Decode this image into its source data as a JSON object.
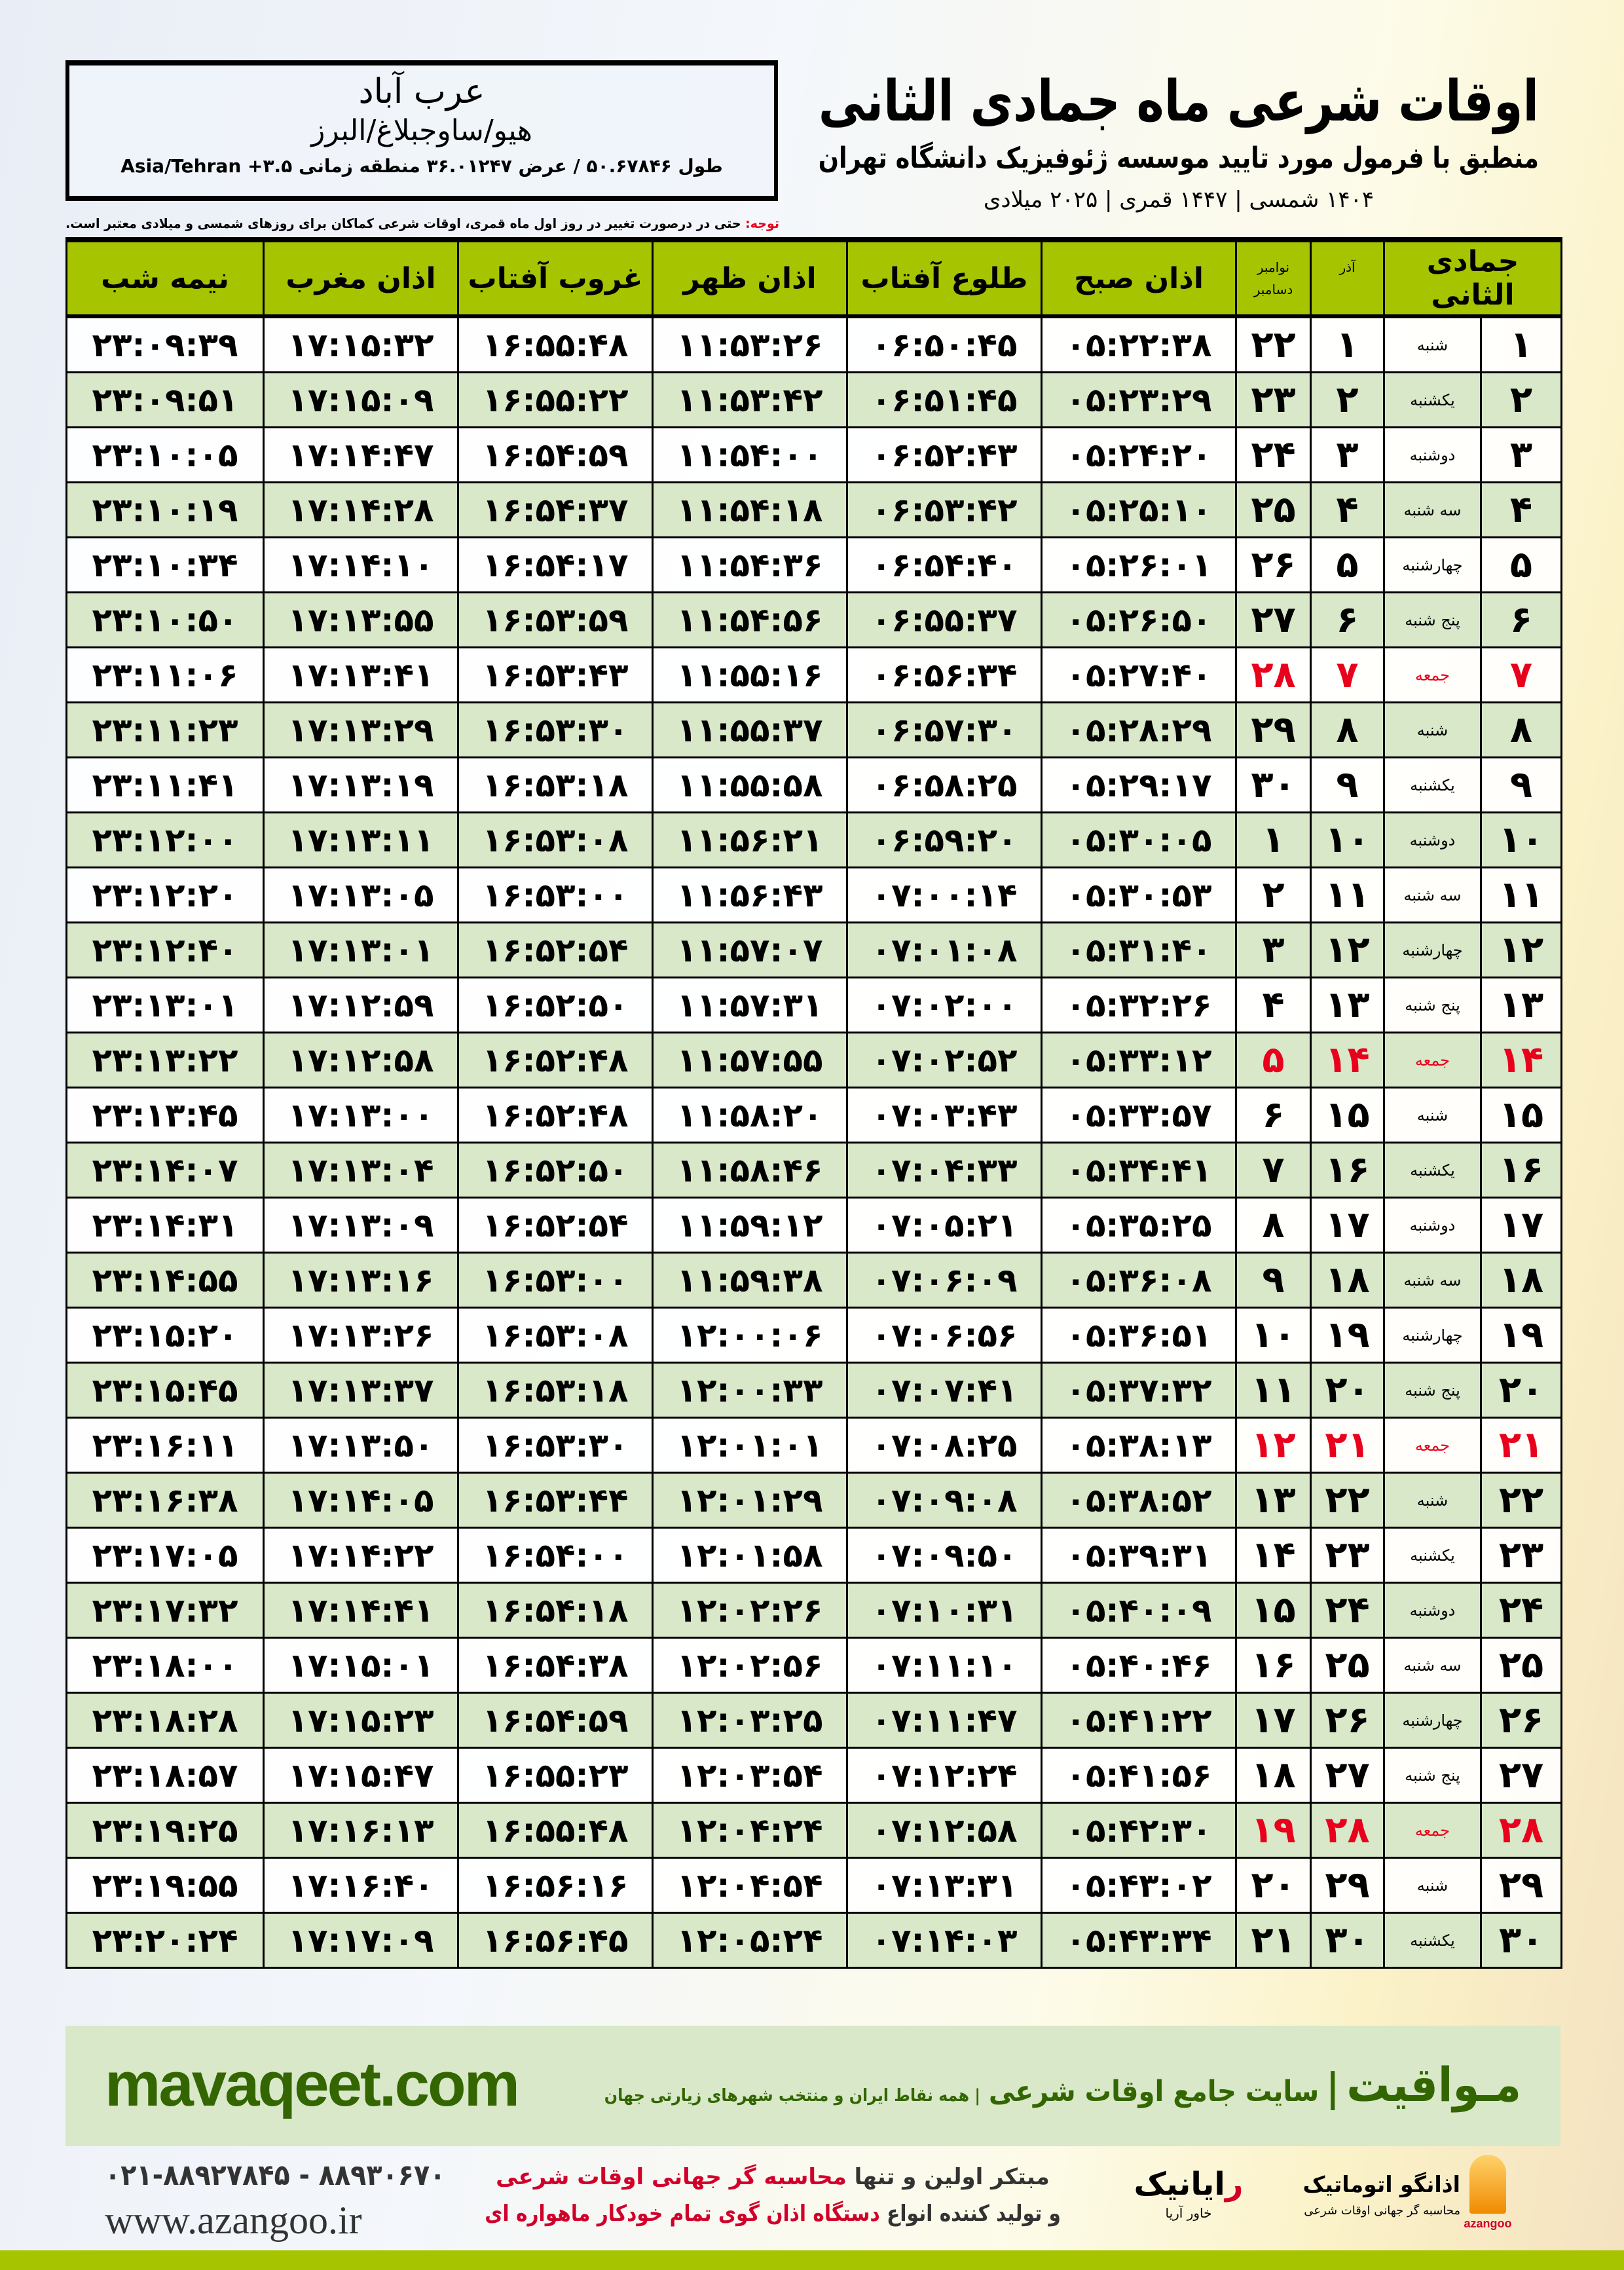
{
  "location": {
    "city": "عرب آباد",
    "region": "هیو/ساوجبلاغ/البرز",
    "coords": "طول ۵۰.۶۷۸۴۶ / عرض ۳۶.۰۱۲۴۷ منطقه زمانی ۳.۵+ Asia/Tehran"
  },
  "header": {
    "title": "اوقات شرعی ماه جمادی الثانی",
    "subtitle": "منطبق با فرمول مورد تایید موسسه ژئوفیزیک دانشگاه تهران",
    "years": "۱۴۰۴ شمسی | ۱۴۴۷ قمری | ۲۰۲۵ میلادی",
    "note_label": "توجه:",
    "note_text": " حتی در درصورت تغییر در روز اول ماه قمری، اوقات شرعی کماکان برای روزهای شمسی و میلادی معتبر است."
  },
  "colors": {
    "header_green": "#a6c400",
    "row_green": "#d8e8c8",
    "holiday_red": "#e8001c",
    "brand_green": "#336600"
  },
  "table": {
    "headers": {
      "hijri": "جمادی الثانی",
      "azar": "آذر",
      "gregorian_top": "نوامبر",
      "gregorian_bottom": "دسامبر",
      "fajr": "اذان صبح",
      "sunrise": "طلوع آفتاب",
      "dhuhr": "اذان ظهر",
      "sunset": "غروب آفتاب",
      "maghrib": "اذان مغرب",
      "midnight": "نیمه شب"
    },
    "rows": [
      {
        "hijri": "۱",
        "weekday": "شنبه",
        "azar": "۱",
        "gregorian": "۲۲",
        "holiday": false,
        "fajr": "۰۵:۲۲:۳۸",
        "sunrise": "۰۶:۵۰:۴۵",
        "dhuhr": "۱۱:۵۳:۲۶",
        "sunset": "۱۶:۵۵:۴۸",
        "maghrib": "۱۷:۱۵:۳۲",
        "midnight": "۲۳:۰۹:۳۹"
      },
      {
        "hijri": "۲",
        "weekday": "یکشنبه",
        "azar": "۲",
        "gregorian": "۲۳",
        "holiday": false,
        "fajr": "۰۵:۲۳:۲۹",
        "sunrise": "۰۶:۵۱:۴۵",
        "dhuhr": "۱۱:۵۳:۴۲",
        "sunset": "۱۶:۵۵:۲۲",
        "maghrib": "۱۷:۱۵:۰۹",
        "midnight": "۲۳:۰۹:۵۱"
      },
      {
        "hijri": "۳",
        "weekday": "دوشنبه",
        "azar": "۳",
        "gregorian": "۲۴",
        "holiday": false,
        "fajr": "۰۵:۲۴:۲۰",
        "sunrise": "۰۶:۵۲:۴۳",
        "dhuhr": "۱۱:۵۴:۰۰",
        "sunset": "۱۶:۵۴:۵۹",
        "maghrib": "۱۷:۱۴:۴۷",
        "midnight": "۲۳:۱۰:۰۵"
      },
      {
        "hijri": "۴",
        "weekday": "سه شنبه",
        "azar": "۴",
        "gregorian": "۲۵",
        "holiday": false,
        "fajr": "۰۵:۲۵:۱۰",
        "sunrise": "۰۶:۵۳:۴۲",
        "dhuhr": "۱۱:۵۴:۱۸",
        "sunset": "۱۶:۵۴:۳۷",
        "maghrib": "۱۷:۱۴:۲۸",
        "midnight": "۲۳:۱۰:۱۹"
      },
      {
        "hijri": "۵",
        "weekday": "چهارشنبه",
        "azar": "۵",
        "gregorian": "۲۶",
        "holiday": false,
        "fajr": "۰۵:۲۶:۰۱",
        "sunrise": "۰۶:۵۴:۴۰",
        "dhuhr": "۱۱:۵۴:۳۶",
        "sunset": "۱۶:۵۴:۱۷",
        "maghrib": "۱۷:۱۴:۱۰",
        "midnight": "۲۳:۱۰:۳۴"
      },
      {
        "hijri": "۶",
        "weekday": "پنج شنبه",
        "azar": "۶",
        "gregorian": "۲۷",
        "holiday": false,
        "fajr": "۰۵:۲۶:۵۰",
        "sunrise": "۰۶:۵۵:۳۷",
        "dhuhr": "۱۱:۵۴:۵۶",
        "sunset": "۱۶:۵۳:۵۹",
        "maghrib": "۱۷:۱۳:۵۵",
        "midnight": "۲۳:۱۰:۵۰"
      },
      {
        "hijri": "۷",
        "weekday": "جمعه",
        "azar": "۷",
        "gregorian": "۲۸",
        "holiday": true,
        "fajr": "۰۵:۲۷:۴۰",
        "sunrise": "۰۶:۵۶:۳۴",
        "dhuhr": "۱۱:۵۵:۱۶",
        "sunset": "۱۶:۵۳:۴۳",
        "maghrib": "۱۷:۱۳:۴۱",
        "midnight": "۲۳:۱۱:۰۶"
      },
      {
        "hijri": "۸",
        "weekday": "شنبه",
        "azar": "۸",
        "gregorian": "۲۹",
        "holiday": false,
        "fajr": "۰۵:۲۸:۲۹",
        "sunrise": "۰۶:۵۷:۳۰",
        "dhuhr": "۱۱:۵۵:۳۷",
        "sunset": "۱۶:۵۳:۳۰",
        "maghrib": "۱۷:۱۳:۲۹",
        "midnight": "۲۳:۱۱:۲۳"
      },
      {
        "hijri": "۹",
        "weekday": "یکشنبه",
        "azar": "۹",
        "gregorian": "۳۰",
        "holiday": false,
        "fajr": "۰۵:۲۹:۱۷",
        "sunrise": "۰۶:۵۸:۲۵",
        "dhuhr": "۱۱:۵۵:۵۸",
        "sunset": "۱۶:۵۳:۱۸",
        "maghrib": "۱۷:۱۳:۱۹",
        "midnight": "۲۳:۱۱:۴۱"
      },
      {
        "hijri": "۱۰",
        "weekday": "دوشنبه",
        "azar": "۱۰",
        "gregorian": "۱",
        "holiday": false,
        "fajr": "۰۵:۳۰:۰۵",
        "sunrise": "۰۶:۵۹:۲۰",
        "dhuhr": "۱۱:۵۶:۲۱",
        "sunset": "۱۶:۵۳:۰۸",
        "maghrib": "۱۷:۱۳:۱۱",
        "midnight": "۲۳:۱۲:۰۰"
      },
      {
        "hijri": "۱۱",
        "weekday": "سه شنبه",
        "azar": "۱۱",
        "gregorian": "۲",
        "holiday": false,
        "fajr": "۰۵:۳۰:۵۳",
        "sunrise": "۰۷:۰۰:۱۴",
        "dhuhr": "۱۱:۵۶:۴۳",
        "sunset": "۱۶:۵۳:۰۰",
        "maghrib": "۱۷:۱۳:۰۵",
        "midnight": "۲۳:۱۲:۲۰"
      },
      {
        "hijri": "۱۲",
        "weekday": "چهارشنبه",
        "azar": "۱۲",
        "gregorian": "۳",
        "holiday": false,
        "fajr": "۰۵:۳۱:۴۰",
        "sunrise": "۰۷:۰۱:۰۸",
        "dhuhr": "۱۱:۵۷:۰۷",
        "sunset": "۱۶:۵۲:۵۴",
        "maghrib": "۱۷:۱۳:۰۱",
        "midnight": "۲۳:۱۲:۴۰"
      },
      {
        "hijri": "۱۳",
        "weekday": "پنج شنبه",
        "azar": "۱۳",
        "gregorian": "۴",
        "holiday": false,
        "fajr": "۰۵:۳۲:۲۶",
        "sunrise": "۰۷:۰۲:۰۰",
        "dhuhr": "۱۱:۵۷:۳۱",
        "sunset": "۱۶:۵۲:۵۰",
        "maghrib": "۱۷:۱۲:۵۹",
        "midnight": "۲۳:۱۳:۰۱"
      },
      {
        "hijri": "۱۴",
        "weekday": "جمعه",
        "azar": "۱۴",
        "gregorian": "۵",
        "holiday": true,
        "fajr": "۰۵:۳۳:۱۲",
        "sunrise": "۰۷:۰۲:۵۲",
        "dhuhr": "۱۱:۵۷:۵۵",
        "sunset": "۱۶:۵۲:۴۸",
        "maghrib": "۱۷:۱۲:۵۸",
        "midnight": "۲۳:۱۳:۲۲"
      },
      {
        "hijri": "۱۵",
        "weekday": "شنبه",
        "azar": "۱۵",
        "gregorian": "۶",
        "holiday": false,
        "fajr": "۰۵:۳۳:۵۷",
        "sunrise": "۰۷:۰۳:۴۳",
        "dhuhr": "۱۱:۵۸:۲۰",
        "sunset": "۱۶:۵۲:۴۸",
        "maghrib": "۱۷:۱۳:۰۰",
        "midnight": "۲۳:۱۳:۴۵"
      },
      {
        "hijri": "۱۶",
        "weekday": "یکشنبه",
        "azar": "۱۶",
        "gregorian": "۷",
        "holiday": false,
        "fajr": "۰۵:۳۴:۴۱",
        "sunrise": "۰۷:۰۴:۳۳",
        "dhuhr": "۱۱:۵۸:۴۶",
        "sunset": "۱۶:۵۲:۵۰",
        "maghrib": "۱۷:۱۳:۰۴",
        "midnight": "۲۳:۱۴:۰۷"
      },
      {
        "hijri": "۱۷",
        "weekday": "دوشنبه",
        "azar": "۱۷",
        "gregorian": "۸",
        "holiday": false,
        "fajr": "۰۵:۳۵:۲۵",
        "sunrise": "۰۷:۰۵:۲۱",
        "dhuhr": "۱۱:۵۹:۱۲",
        "sunset": "۱۶:۵۲:۵۴",
        "maghrib": "۱۷:۱۳:۰۹",
        "midnight": "۲۳:۱۴:۳۱"
      },
      {
        "hijri": "۱۸",
        "weekday": "سه شنبه",
        "azar": "۱۸",
        "gregorian": "۹",
        "holiday": false,
        "fajr": "۰۵:۳۶:۰۸",
        "sunrise": "۰۷:۰۶:۰۹",
        "dhuhr": "۱۱:۵۹:۳۸",
        "sunset": "۱۶:۵۳:۰۰",
        "maghrib": "۱۷:۱۳:۱۶",
        "midnight": "۲۳:۱۴:۵۵"
      },
      {
        "hijri": "۱۹",
        "weekday": "چهارشنبه",
        "azar": "۱۹",
        "gregorian": "۱۰",
        "holiday": false,
        "fajr": "۰۵:۳۶:۵۱",
        "sunrise": "۰۷:۰۶:۵۶",
        "dhuhr": "۱۲:۰۰:۰۶",
        "sunset": "۱۶:۵۳:۰۸",
        "maghrib": "۱۷:۱۳:۲۶",
        "midnight": "۲۳:۱۵:۲۰"
      },
      {
        "hijri": "۲۰",
        "weekday": "پنج شنبه",
        "azar": "۲۰",
        "gregorian": "۱۱",
        "holiday": false,
        "fajr": "۰۵:۳۷:۳۲",
        "sunrise": "۰۷:۰۷:۴۱",
        "dhuhr": "۱۲:۰۰:۳۳",
        "sunset": "۱۶:۵۳:۱۸",
        "maghrib": "۱۷:۱۳:۳۷",
        "midnight": "۲۳:۱۵:۴۵"
      },
      {
        "hijri": "۲۱",
        "weekday": "جمعه",
        "azar": "۲۱",
        "gregorian": "۱۲",
        "holiday": true,
        "fajr": "۰۵:۳۸:۱۳",
        "sunrise": "۰۷:۰۸:۲۵",
        "dhuhr": "۱۲:۰۱:۰۱",
        "sunset": "۱۶:۵۳:۳۰",
        "maghrib": "۱۷:۱۳:۵۰",
        "midnight": "۲۳:۱۶:۱۱"
      },
      {
        "hijri": "۲۲",
        "weekday": "شنبه",
        "azar": "۲۲",
        "gregorian": "۱۳",
        "holiday": false,
        "fajr": "۰۵:۳۸:۵۲",
        "sunrise": "۰۷:۰۹:۰۸",
        "dhuhr": "۱۲:۰۱:۲۹",
        "sunset": "۱۶:۵۳:۴۴",
        "maghrib": "۱۷:۱۴:۰۵",
        "midnight": "۲۳:۱۶:۳۸"
      },
      {
        "hijri": "۲۳",
        "weekday": "یکشنبه",
        "azar": "۲۳",
        "gregorian": "۱۴",
        "holiday": false,
        "fajr": "۰۵:۳۹:۳۱",
        "sunrise": "۰۷:۰۹:۵۰",
        "dhuhr": "۱۲:۰۱:۵۸",
        "sunset": "۱۶:۵۴:۰۰",
        "maghrib": "۱۷:۱۴:۲۲",
        "midnight": "۲۳:۱۷:۰۵"
      },
      {
        "hijri": "۲۴",
        "weekday": "دوشنبه",
        "azar": "۲۴",
        "gregorian": "۱۵",
        "holiday": false,
        "fajr": "۰۵:۴۰:۰۹",
        "sunrise": "۰۷:۱۰:۳۱",
        "dhuhr": "۱۲:۰۲:۲۶",
        "sunset": "۱۶:۵۴:۱۸",
        "maghrib": "۱۷:۱۴:۴۱",
        "midnight": "۲۳:۱۷:۳۲"
      },
      {
        "hijri": "۲۵",
        "weekday": "سه شنبه",
        "azar": "۲۵",
        "gregorian": "۱۶",
        "holiday": false,
        "fajr": "۰۵:۴۰:۴۶",
        "sunrise": "۰۷:۱۱:۱۰",
        "dhuhr": "۱۲:۰۲:۵۶",
        "sunset": "۱۶:۵۴:۳۸",
        "maghrib": "۱۷:۱۵:۰۱",
        "midnight": "۲۳:۱۸:۰۰"
      },
      {
        "hijri": "۲۶",
        "weekday": "چهارشنبه",
        "azar": "۲۶",
        "gregorian": "۱۷",
        "holiday": false,
        "fajr": "۰۵:۴۱:۲۲",
        "sunrise": "۰۷:۱۱:۴۷",
        "dhuhr": "۱۲:۰۳:۲۵",
        "sunset": "۱۶:۵۴:۵۹",
        "maghrib": "۱۷:۱۵:۲۳",
        "midnight": "۲۳:۱۸:۲۸"
      },
      {
        "hijri": "۲۷",
        "weekday": "پنج شنبه",
        "azar": "۲۷",
        "gregorian": "۱۸",
        "holiday": false,
        "fajr": "۰۵:۴۱:۵۶",
        "sunrise": "۰۷:۱۲:۲۴",
        "dhuhr": "۱۲:۰۳:۵۴",
        "sunset": "۱۶:۵۵:۲۳",
        "maghrib": "۱۷:۱۵:۴۷",
        "midnight": "۲۳:۱۸:۵۷"
      },
      {
        "hijri": "۲۸",
        "weekday": "جمعه",
        "azar": "۲۸",
        "gregorian": "۱۹",
        "holiday": true,
        "fajr": "۰۵:۴۲:۳۰",
        "sunrise": "۰۷:۱۲:۵۸",
        "dhuhr": "۱۲:۰۴:۲۴",
        "sunset": "۱۶:۵۵:۴۸",
        "maghrib": "۱۷:۱۶:۱۳",
        "midnight": "۲۳:۱۹:۲۵"
      },
      {
        "hijri": "۲۹",
        "weekday": "شنبه",
        "azar": "۲۹",
        "gregorian": "۲۰",
        "holiday": false,
        "fajr": "۰۵:۴۳:۰۲",
        "sunrise": "۰۷:۱۳:۳۱",
        "dhuhr": "۱۲:۰۴:۵۴",
        "sunset": "۱۶:۵۶:۱۶",
        "maghrib": "۱۷:۱۶:۴۰",
        "midnight": "۲۳:۱۹:۵۵"
      },
      {
        "hijri": "۳۰",
        "weekday": "یکشنبه",
        "azar": "۳۰",
        "gregorian": "۲۱",
        "holiday": false,
        "fajr": "۰۵:۴۳:۳۴",
        "sunrise": "۰۷:۱۴:۰۳",
        "dhuhr": "۱۲:۰۵:۲۴",
        "sunset": "۱۶:۵۶:۴۵",
        "maghrib": "۱۷:۱۷:۰۹",
        "midnight": "۲۳:۲۰:۲۴"
      }
    ]
  },
  "promo": {
    "domain": "mavaqeet.com",
    "brand": "مـواقیت",
    "separator": "|",
    "slogan": "سایت جامع اوقات شرعی",
    "sub": "| همه نقاط ایران و منتخب شهرهای زیارتی جهان"
  },
  "footer": {
    "phone": "۰۲۱-۸۸۹۲۷۸۴۵ - ۸۸۹۳۰۶۷۰",
    "website": "www.azangoo.ir",
    "tagline_1a": "مبتکر اولین و تنها ",
    "tagline_1b": "محاسبه گر جهانی اوقات شرعی",
    "tagline_2a": "و تولید کننده انواع ",
    "tagline_2b": "دستگاه اذان گوی تمام خودکار ماهواره ای",
    "raianik_r": "ر",
    "raianik_rest": "ایانیک",
    "raianik_sub": "خاور آریا",
    "azangoo_name": "اذانگو اتوماتیک",
    "azangoo_sub": "محاسبه گر جهانی اوقات شرعی",
    "azangoo_latin": "azangoo"
  }
}
